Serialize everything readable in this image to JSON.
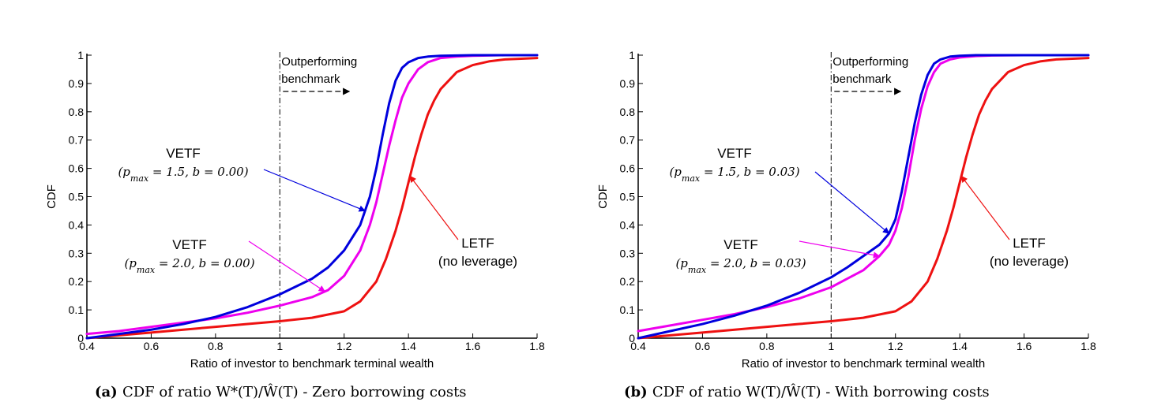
{
  "chart_data": [
    {
      "type": "line",
      "xlabel": "Ratio of investor to benchmark terminal wealth",
      "ylabel": "CDF",
      "xlim": [
        0.4,
        1.8
      ],
      "ylim": [
        0,
        1
      ],
      "xticks": [
        "0.4",
        "0.6",
        "0.8",
        "1",
        "1.2",
        "1.4",
        "1.6",
        "1.8"
      ],
      "yticks": [
        "0",
        "0.1",
        "0.2",
        "0.3",
        "0.4",
        "0.5",
        "0.6",
        "0.7",
        "0.8",
        "0.9",
        "1"
      ],
      "grid": false,
      "vline": {
        "x": 1.0,
        "label_line1": "Outperforming",
        "label_line2": "benchmark"
      },
      "caption": {
        "prefix": "(a)",
        "text": "CDF of ratio W*(T)/Ŵ(T) - Zero borrowing costs"
      },
      "series": [
        {
          "name": "VETF (p_max = 1.5, b = 0.00)",
          "color": "#0000dd",
          "x": [
            0.4,
            0.5,
            0.6,
            0.7,
            0.8,
            0.9,
            1.0,
            1.1,
            1.15,
            1.2,
            1.25,
            1.28,
            1.3,
            1.32,
            1.34,
            1.36,
            1.38,
            1.4,
            1.43,
            1.46,
            1.5,
            1.55,
            1.6,
            1.7,
            1.8
          ],
          "y": [
            0.0,
            0.015,
            0.03,
            0.05,
            0.075,
            0.11,
            0.155,
            0.21,
            0.25,
            0.31,
            0.4,
            0.5,
            0.6,
            0.72,
            0.83,
            0.91,
            0.955,
            0.975,
            0.99,
            0.995,
            0.998,
            0.999,
            1.0,
            1.0,
            1.0
          ]
        },
        {
          "name": "VETF (p_max = 2.0, b = 0.00)",
          "color": "#ee00ee",
          "x": [
            0.4,
            0.5,
            0.6,
            0.7,
            0.8,
            0.9,
            1.0,
            1.1,
            1.15,
            1.2,
            1.25,
            1.28,
            1.3,
            1.32,
            1.34,
            1.36,
            1.38,
            1.4,
            1.43,
            1.46,
            1.5,
            1.55,
            1.6,
            1.7,
            1.8
          ],
          "y": [
            0.015,
            0.025,
            0.04,
            0.055,
            0.07,
            0.09,
            0.115,
            0.145,
            0.17,
            0.22,
            0.31,
            0.4,
            0.48,
            0.58,
            0.68,
            0.77,
            0.85,
            0.9,
            0.95,
            0.975,
            0.99,
            0.995,
            0.998,
            1.0,
            1.0
          ]
        },
        {
          "name": "LETF (no leverage)",
          "color": "#ee1111",
          "x": [
            0.4,
            0.5,
            0.6,
            0.7,
            0.8,
            0.9,
            1.0,
            1.1,
            1.2,
            1.25,
            1.3,
            1.33,
            1.36,
            1.38,
            1.4,
            1.42,
            1.44,
            1.46,
            1.48,
            1.5,
            1.55,
            1.6,
            1.65,
            1.7,
            1.8
          ],
          "y": [
            0.0,
            0.01,
            0.02,
            0.03,
            0.04,
            0.05,
            0.06,
            0.072,
            0.095,
            0.13,
            0.2,
            0.28,
            0.38,
            0.46,
            0.55,
            0.64,
            0.72,
            0.79,
            0.84,
            0.88,
            0.94,
            0.965,
            0.978,
            0.985,
            0.99
          ]
        }
      ],
      "annotations": [
        {
          "label": "VETF",
          "sub": "(p_max = 1.5, b = 0.00)",
          "series": 0,
          "color": "#0000dd"
        },
        {
          "label": "VETF",
          "sub": "(p_max = 2.0, b = 0.00)",
          "series": 1,
          "color": "#ee00ee"
        },
        {
          "label": "LETF",
          "sub": "(no leverage)",
          "series": 2,
          "color": "#ee1111"
        }
      ]
    },
    {
      "type": "line",
      "xlabel": "Ratio of investor to benchmark terminal wealth",
      "ylabel": "CDF",
      "xlim": [
        0.4,
        1.8
      ],
      "ylim": [
        0,
        1
      ],
      "xticks": [
        "0.4",
        "0.6",
        "0.8",
        "1",
        "1.2",
        "1.4",
        "1.6",
        "1.8"
      ],
      "yticks": [
        "0",
        "0.1",
        "0.2",
        "0.3",
        "0.4",
        "0.5",
        "0.6",
        "0.7",
        "0.8",
        "0.9",
        "1"
      ],
      "grid": false,
      "vline": {
        "x": 1.0,
        "label_line1": "Outperforming",
        "label_line2": "benchmark"
      },
      "caption": {
        "prefix": "(b)",
        "text": "CDF of ratio W(T)/Ŵ(T) - With borrowing costs"
      },
      "series": [
        {
          "name": "VETF (p_max = 1.5, b = 0.03)",
          "color": "#0000dd",
          "x": [
            0.4,
            0.5,
            0.6,
            0.7,
            0.8,
            0.9,
            1.0,
            1.05,
            1.1,
            1.15,
            1.18,
            1.2,
            1.22,
            1.24,
            1.26,
            1.28,
            1.3,
            1.32,
            1.34,
            1.37,
            1.4,
            1.45,
            1.5,
            1.6,
            1.8
          ],
          "y": [
            0.0,
            0.025,
            0.05,
            0.08,
            0.115,
            0.16,
            0.215,
            0.25,
            0.29,
            0.33,
            0.37,
            0.42,
            0.52,
            0.64,
            0.76,
            0.86,
            0.93,
            0.97,
            0.985,
            0.995,
            0.998,
            1.0,
            1.0,
            1.0,
            1.0
          ]
        },
        {
          "name": "VETF (p_max = 2.0, b = 0.03)",
          "color": "#ee00ee",
          "x": [
            0.4,
            0.5,
            0.6,
            0.7,
            0.8,
            0.9,
            1.0,
            1.05,
            1.1,
            1.15,
            1.18,
            1.2,
            1.22,
            1.24,
            1.26,
            1.28,
            1.3,
            1.32,
            1.34,
            1.37,
            1.4,
            1.45,
            1.5,
            1.6,
            1.8
          ],
          "y": [
            0.025,
            0.045,
            0.065,
            0.085,
            0.11,
            0.14,
            0.18,
            0.21,
            0.24,
            0.29,
            0.33,
            0.38,
            0.46,
            0.57,
            0.7,
            0.81,
            0.89,
            0.94,
            0.97,
            0.985,
            0.992,
            0.997,
            0.999,
            1.0,
            1.0
          ]
        },
        {
          "name": "LETF (no leverage)",
          "color": "#ee1111",
          "x": [
            0.4,
            0.5,
            0.6,
            0.7,
            0.8,
            0.9,
            1.0,
            1.1,
            1.2,
            1.25,
            1.3,
            1.33,
            1.36,
            1.38,
            1.4,
            1.42,
            1.44,
            1.46,
            1.48,
            1.5,
            1.55,
            1.6,
            1.65,
            1.7,
            1.8
          ],
          "y": [
            0.0,
            0.01,
            0.02,
            0.03,
            0.04,
            0.05,
            0.06,
            0.072,
            0.095,
            0.13,
            0.2,
            0.28,
            0.38,
            0.46,
            0.55,
            0.64,
            0.72,
            0.79,
            0.84,
            0.88,
            0.94,
            0.965,
            0.978,
            0.985,
            0.99
          ]
        }
      ],
      "annotations": [
        {
          "label": "VETF",
          "sub": "(p_max = 1.5, b = 0.03)",
          "series": 0,
          "color": "#0000dd"
        },
        {
          "label": "VETF",
          "sub": "(p_max = 2.0, b = 0.03)",
          "series": 1,
          "color": "#ee00ee"
        },
        {
          "label": "LETF",
          "sub": "(no leverage)",
          "series": 2,
          "color": "#ee1111"
        }
      ]
    }
  ]
}
